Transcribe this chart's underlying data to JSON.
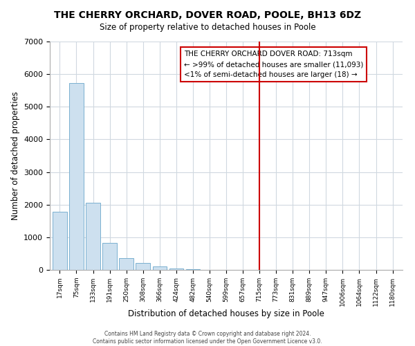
{
  "title": "THE CHERRY ORCHARD, DOVER ROAD, POOLE, BH13 6DZ",
  "subtitle": "Size of property relative to detached houses in Poole",
  "xlabel": "Distribution of detached houses by size in Poole",
  "ylabel": "Number of detached properties",
  "bar_labels": [
    "17sqm",
    "75sqm",
    "133sqm",
    "191sqm",
    "250sqm",
    "308sqm",
    "366sqm",
    "424sqm",
    "482sqm",
    "540sqm",
    "599sqm",
    "657sqm",
    "715sqm",
    "773sqm",
    "831sqm",
    "889sqm",
    "947sqm",
    "1006sqm",
    "1064sqm",
    "1122sqm",
    "1180sqm"
  ],
  "bar_values": [
    1780,
    5730,
    2050,
    820,
    370,
    220,
    110,
    50,
    30,
    10,
    5,
    3,
    0,
    0,
    0,
    0,
    0,
    0,
    0,
    0,
    0
  ],
  "bar_color": "#cde0ef",
  "bar_edge_color": "#7ab0d0",
  "vline_x_index": 12,
  "vline_color": "#cc0000",
  "annotation_text": "THE CHERRY ORCHARD DOVER ROAD: 713sqm\n← >99% of detached houses are smaller (11,093)\n<1% of semi-detached houses are larger (18) →",
  "annotation_box_color": "#ffffff",
  "annotation_box_edge": "#cc0000",
  "ylim": [
    0,
    7000
  ],
  "yticks": [
    0,
    1000,
    2000,
    3000,
    4000,
    5000,
    6000,
    7000
  ],
  "footer_line1": "Contains HM Land Registry data © Crown copyright and database right 2024.",
  "footer_line2": "Contains public sector information licensed under the Open Government Licence v3.0.",
  "bg_color": "#ffffff",
  "plot_bg_color": "#ffffff"
}
